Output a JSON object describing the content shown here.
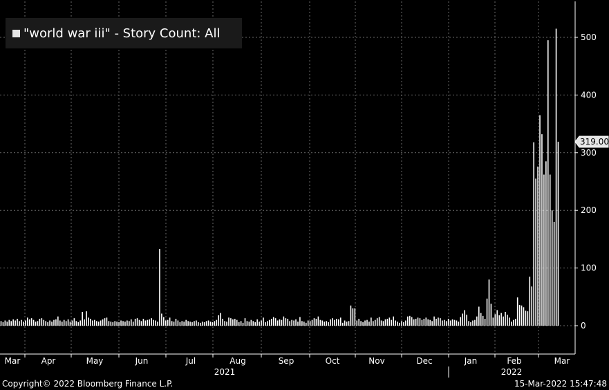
{
  "legend": {
    "title": "\"world war iii\" - Story Count: All",
    "swatch_color": "#e6e6e6"
  },
  "footer": {
    "copyright": "Copyright© 2022 Bloomberg Finance L.P.",
    "timestamp": "15-Mar-2022 15:47:48"
  },
  "chart_data": {
    "type": "bar",
    "title": "\"world war iii\" - Story Count: All",
    "ylim": [
      -40,
      560
    ],
    "yticks": [
      0,
      100,
      200,
      300,
      400,
      500
    ],
    "y_axis_position": "right",
    "grid": true,
    "month_labels": [
      "Mar",
      "Apr",
      "May",
      "Jun",
      "Jul",
      "Aug",
      "Sep",
      "Oct",
      "Nov",
      "Dec",
      "Jan",
      "Feb",
      "Mar"
    ],
    "year_labels": [
      "2021",
      "2022"
    ],
    "last_value_label": "319.00",
    "last_value": 319,
    "series": [
      {
        "values": [
          8,
          6,
          9,
          7,
          10,
          8,
          11,
          9,
          12,
          8,
          10,
          7,
          9,
          14,
          11,
          13,
          10,
          7,
          8,
          12,
          13,
          10,
          8,
          6,
          9,
          7,
          10,
          11,
          16,
          9,
          7,
          10,
          8,
          11,
          7,
          9,
          13,
          8,
          6,
          9,
          24,
          11,
          25,
          14,
          12,
          9,
          10,
          8,
          7,
          9,
          11,
          13,
          14,
          8,
          7,
          6,
          8,
          7,
          6,
          9,
          8,
          7,
          9,
          8,
          11,
          7,
          12,
          13,
          10,
          8,
          12,
          9,
          10,
          11,
          13,
          10,
          9,
          7,
          133,
          21,
          15,
          9,
          10,
          14,
          8,
          7,
          12,
          9,
          6,
          8,
          7,
          10,
          8,
          7,
          6,
          8,
          9,
          6,
          5,
          7,
          6,
          8,
          9,
          7,
          6,
          8,
          10,
          18,
          22,
          12,
          8,
          7,
          14,
          13,
          11,
          12,
          10,
          6,
          8,
          5,
          13,
          8,
          7,
          10,
          8,
          6,
          11,
          7,
          9,
          14,
          6,
          8,
          10,
          12,
          15,
          13,
          9,
          11,
          10,
          16,
          13,
          12,
          8,
          10,
          9,
          11,
          7,
          15,
          8,
          7,
          5,
          9,
          8,
          10,
          13,
          12,
          16,
          10,
          9,
          7,
          8,
          6,
          11,
          13,
          10,
          12,
          11,
          14,
          5,
          9,
          7,
          8,
          35,
          30,
          30,
          9,
          12,
          8,
          6,
          9,
          10,
          7,
          14,
          8,
          10,
          13,
          15,
          9,
          8,
          11,
          12,
          14,
          10,
          16,
          9,
          7,
          5,
          8,
          6,
          9,
          16,
          17,
          15,
          11,
          12,
          14,
          13,
          10,
          12,
          14,
          11,
          10,
          8,
          16,
          12,
          14,
          13,
          9,
          10,
          8,
          12,
          9,
          11,
          10,
          9,
          7,
          15,
          21,
          27,
          19,
          8,
          6,
          9,
          10,
          16,
          33,
          22,
          17,
          12,
          47,
          80,
          38,
          14,
          20,
          27,
          18,
          22,
          16,
          24,
          19,
          14,
          7,
          10,
          12,
          49,
          36,
          35,
          32,
          26,
          25,
          85,
          68,
          318,
          255,
          276,
          365,
          332,
          262,
          285,
          495,
          262,
          200,
          180,
          515,
          319
        ]
      }
    ]
  }
}
